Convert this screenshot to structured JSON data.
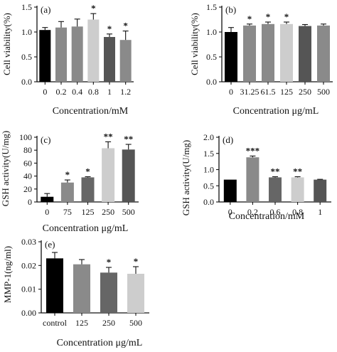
{
  "chart_data": [
    {
      "panel": "(a)",
      "type": "bar",
      "ylabel": "Cell viability(%)",
      "xlabel": "Concentration/mM",
      "categories": [
        "0",
        "0.2",
        "0.4",
        "0.8",
        "1",
        "1.2"
      ],
      "values": [
        1.04,
        1.09,
        1.11,
        1.25,
        0.9,
        0.84
      ],
      "errors": [
        0.05,
        0.12,
        0.15,
        0.12,
        0.06,
        0.18
      ],
      "colors": [
        "#000000",
        "#8a8a8a",
        "#8a8a8a",
        "#cdcdcd",
        "#555555",
        "#8a8a8a"
      ],
      "stars": [
        "",
        "",
        "",
        "*",
        "*",
        "*"
      ],
      "ylim": [
        0,
        1.5
      ],
      "yticks": [
        "0.0",
        "0.5",
        "1.0",
        "1.5"
      ]
    },
    {
      "panel": "(b)",
      "type": "bar",
      "ylabel": "Cell viability(%)",
      "xlabel": "Concentration μg/mL",
      "categories": [
        "0",
        "31.25",
        "61.5",
        "125",
        "250",
        "500"
      ],
      "values": [
        1.0,
        1.13,
        1.16,
        1.16,
        1.12,
        1.13
      ],
      "errors": [
        0.09,
        0.03,
        0.04,
        0.04,
        0.03,
        0.03
      ],
      "colors": [
        "#000000",
        "#8a8a8a",
        "#8a8a8a",
        "#cdcdcd",
        "#555555",
        "#8a8a8a"
      ],
      "stars": [
        "",
        "*",
        "*",
        "*",
        "",
        ""
      ],
      "ylim": [
        0,
        1.5
      ],
      "yticks": [
        "0.0",
        "0.5",
        "1.0",
        "1.5"
      ]
    },
    {
      "panel": "(c)",
      "type": "bar",
      "ylabel": "GSH activity(U/mg)",
      "xlabel": "Concentration μg/mL",
      "categories": [
        "0",
        "75",
        "125",
        "250",
        "500"
      ],
      "values": [
        8,
        30,
        38,
        83,
        81
      ],
      "errors": [
        5,
        4,
        1,
        10,
        8
      ],
      "colors": [
        "#000000",
        "#8a8a8a",
        "#666666",
        "#cdcdcd",
        "#555555"
      ],
      "stars": [
        "",
        "*",
        "*",
        "**",
        "**"
      ],
      "ylim": [
        0,
        100
      ],
      "yticks": [
        "0",
        "20",
        "40",
        "60",
        "80",
        "100"
      ]
    },
    {
      "panel": "(d)",
      "type": "bar",
      "ylabel": "GSH activity(U/mg)",
      "xlabel": "Concentration/mM",
      "categories": [
        "0",
        "0.2",
        "0.6",
        "0.8",
        "1"
      ],
      "values": [
        0.69,
        1.38,
        0.76,
        0.76,
        0.69
      ],
      "errors": [
        0.0,
        0.04,
        0.02,
        0.02,
        0.01
      ],
      "colors": [
        "#000000",
        "#8a8a8a",
        "#666666",
        "#cdcdcd",
        "#555555"
      ],
      "stars": [
        "",
        "***",
        "**",
        "**",
        ""
      ],
      "ylim": [
        0,
        2.0
      ],
      "yticks": [
        "0.0",
        "0.5",
        "1.0",
        "1.5",
        "2.0"
      ]
    },
    {
      "panel": "(e)",
      "type": "bar",
      "ylabel": "MMP-1(ng/ml)",
      "xlabel": "Concentration μg/mL",
      "categories": [
        "control",
        "125",
        "250",
        "500"
      ],
      "values": [
        0.023,
        0.0205,
        0.017,
        0.0165
      ],
      "errors": [
        0.0025,
        0.002,
        0.0022,
        0.003
      ],
      "colors": [
        "#000000",
        "#8a8a8a",
        "#666666",
        "#cdcdcd"
      ],
      "stars": [
        "",
        "",
        "*",
        "*"
      ],
      "ylim": [
        0,
        0.03
      ],
      "yticks": [
        "0.00",
        "0.01",
        "0.02",
        "0.03"
      ]
    }
  ]
}
